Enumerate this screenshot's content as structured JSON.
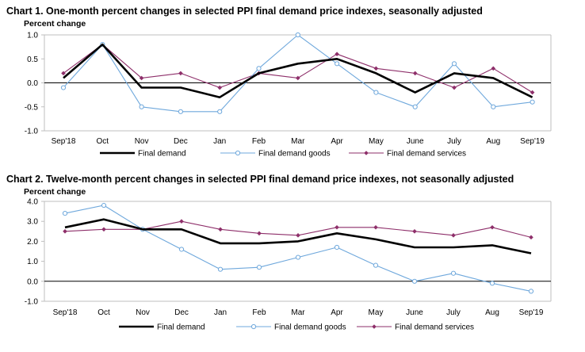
{
  "colors": {
    "final_demand": "#000000",
    "final_demand_goods": "#6fa8dc",
    "final_demand_services": "#8e2f6a",
    "axis": "#bfbfbf",
    "zero_line": "#000000"
  },
  "chart_data": [
    {
      "type": "line",
      "title": "Chart 1. One-month percent changes in selected PPI final demand price indexes, seasonally adjusted",
      "ylabel": "Percent change",
      "xlabel": "",
      "categories": [
        "Sep'18",
        "Oct",
        "Nov",
        "Dec",
        "Jan",
        "Feb",
        "Mar",
        "Apr",
        "May",
        "June",
        "July",
        "Aug",
        "Sep'19"
      ],
      "ylim": [
        -1.0,
        1.0
      ],
      "yticks": [
        "1.0",
        "0.5",
        "0.0",
        "-0.5",
        "-1.0"
      ],
      "ytick_values": [
        1.0,
        0.5,
        0.0,
        -0.5,
        -1.0
      ],
      "grid": false,
      "legend_position": "bottom",
      "series": [
        {
          "name": "Final demand",
          "values": [
            0.1,
            0.8,
            -0.1,
            -0.1,
            -0.3,
            0.2,
            0.4,
            0.5,
            0.2,
            -0.2,
            0.2,
            0.1,
            -0.3
          ]
        },
        {
          "name": "Final demand goods",
          "values": [
            -0.1,
            0.8,
            -0.5,
            -0.6,
            -0.6,
            0.3,
            1.0,
            0.4,
            -0.2,
            -0.5,
            0.4,
            -0.5,
            -0.4
          ]
        },
        {
          "name": "Final demand services",
          "values": [
            0.2,
            0.8,
            0.1,
            0.2,
            -0.1,
            0.2,
            0.1,
            0.6,
            0.3,
            0.2,
            -0.1,
            0.3,
            -0.2
          ]
        }
      ]
    },
    {
      "type": "line",
      "title": "Chart 2. Twelve-month percent changes in selected PPI final demand price indexes, not seasonally adjusted",
      "ylabel": "Percent change",
      "xlabel": "",
      "categories": [
        "Sep'18",
        "Oct",
        "Nov",
        "Dec",
        "Jan",
        "Feb",
        "Mar",
        "Apr",
        "May",
        "June",
        "July",
        "Aug",
        "Sep'19"
      ],
      "ylim": [
        -1.0,
        4.0
      ],
      "yticks": [
        "4.0",
        "3.0",
        "2.0",
        "1.0",
        "0.0",
        "-1.0"
      ],
      "ytick_values": [
        4.0,
        3.0,
        2.0,
        1.0,
        0.0,
        -1.0
      ],
      "grid": false,
      "legend_position": "bottom",
      "series": [
        {
          "name": "Final demand",
          "values": [
            2.7,
            3.1,
            2.6,
            2.6,
            1.9,
            1.9,
            2.0,
            2.4,
            2.1,
            1.7,
            1.7,
            1.8,
            1.4
          ]
        },
        {
          "name": "Final demand goods",
          "values": [
            3.4,
            3.8,
            2.6,
            1.6,
            0.6,
            0.7,
            1.2,
            1.7,
            0.8,
            0.0,
            0.4,
            -0.1,
            -0.5
          ]
        },
        {
          "name": "Final demand services",
          "values": [
            2.5,
            2.6,
            2.6,
            3.0,
            2.6,
            2.4,
            2.3,
            2.7,
            2.7,
            2.5,
            2.3,
            2.7,
            2.2
          ]
        }
      ]
    }
  ]
}
